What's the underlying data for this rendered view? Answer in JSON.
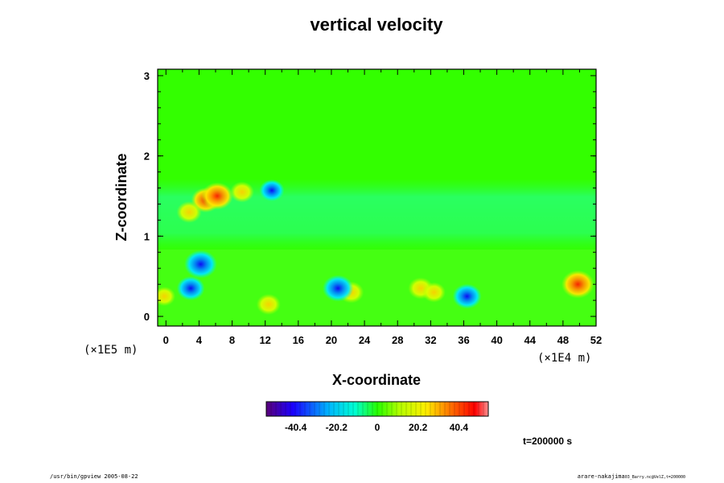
{
  "chart_data": {
    "type": "heatmap",
    "title": "vertical velocity",
    "xlabel": "X-coordinate",
    "ylabel": "Z-coordinate",
    "x_scale_label": "(×1E4 m)",
    "y_scale_label": "(×1E5 m)",
    "x_ticks": [
      "0",
      "4",
      "8",
      "12",
      "16",
      "20",
      "24",
      "28",
      "32",
      "36",
      "40",
      "44",
      "48",
      "52"
    ],
    "x_tick_values": [
      0,
      4,
      8,
      12,
      16,
      20,
      24,
      28,
      32,
      36,
      40,
      44,
      48,
      52
    ],
    "xlim": [
      -1,
      52
    ],
    "y_ticks": [
      "0",
      "1",
      "2",
      "3"
    ],
    "y_tick_values": [
      0,
      1,
      2,
      3
    ],
    "ylim": [
      -0.12,
      3.08
    ],
    "colorbar": {
      "ticks": [
        "-40.4",
        "-20.2",
        "0",
        "20.2",
        "40.4"
      ],
      "tick_values": [
        -40.4,
        -20.2,
        0,
        20.2,
        40.4
      ],
      "range": [
        -55,
        55
      ]
    },
    "time_label": "t=200000 s",
    "features": [
      {
        "sign": "positive",
        "level": 0.75,
        "x": 4.8,
        "z": 1.45
      },
      {
        "sign": "positive",
        "level": 0.9,
        "x": 6.2,
        "z": 1.5
      },
      {
        "sign": "positive",
        "level": 0.55,
        "x": 2.8,
        "z": 1.3
      },
      {
        "sign": "positive",
        "level": 0.5,
        "x": 9.2,
        "z": 1.55
      },
      {
        "sign": "positive",
        "level": 0.5,
        "x": 12.4,
        "z": 0.15
      },
      {
        "sign": "positive",
        "level": 0.55,
        "x": 22.4,
        "z": 0.3
      },
      {
        "sign": "positive",
        "level": 0.55,
        "x": 30.8,
        "z": 0.35
      },
      {
        "sign": "positive",
        "level": 0.45,
        "x": 32.4,
        "z": 0.3
      },
      {
        "sign": "positive",
        "level": 0.95,
        "x": 49.8,
        "z": 0.4
      },
      {
        "sign": "positive",
        "level": 0.4,
        "x": -0.2,
        "z": 0.25
      },
      {
        "sign": "negative",
        "level": 0.95,
        "x": 4.2,
        "z": 0.65
      },
      {
        "sign": "negative",
        "level": 0.7,
        "x": 3.0,
        "z": 0.35
      },
      {
        "sign": "negative",
        "level": 0.85,
        "x": 20.8,
        "z": 0.35
      },
      {
        "sign": "negative",
        "level": 0.75,
        "x": 36.4,
        "z": 0.25
      },
      {
        "sign": "negative",
        "level": 0.55,
        "x": 12.8,
        "z": 1.57
      }
    ]
  },
  "footer": {
    "left": "/usr/bin/gpview 2005-08-22",
    "right_main": "arare-nakajima",
    "right_sub": "03_Barry.nc@VelZ,t=200000"
  }
}
